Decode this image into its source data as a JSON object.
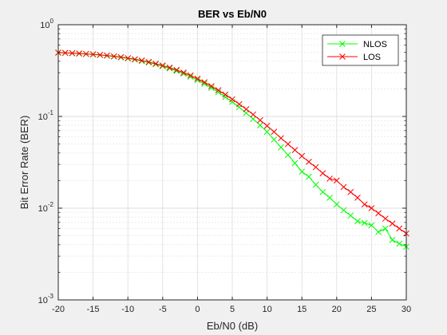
{
  "colors": {
    "NLOS": "#00ff00",
    "LOS": "#ff0000"
  },
  "chart_data": {
    "type": "line",
    "title": "BER vs Eb/N0",
    "xlabel": "Eb/N0 (dB)",
    "ylabel": "Bit Error Rate (BER)",
    "xlim": [
      -20,
      30
    ],
    "ylim": [
      0.001,
      1
    ],
    "yscale": "log",
    "grid": true,
    "legend_position": "top-right",
    "xticks": [
      -20,
      -15,
      -10,
      -5,
      0,
      5,
      10,
      15,
      20,
      25,
      30
    ],
    "xtick_labels": [
      "-20",
      "-15",
      "-10",
      "-5",
      "0",
      "5",
      "10",
      "15",
      "20",
      "25",
      "30"
    ],
    "yticks": [
      {
        "value": 0.001,
        "base": "10",
        "exp": "-3"
      },
      {
        "value": 0.01,
        "base": "10",
        "exp": "-2"
      },
      {
        "value": 0.1,
        "base": "10",
        "exp": "-1"
      },
      {
        "value": 1,
        "base": "10",
        "exp": "0"
      }
    ],
    "x": [
      -20,
      -19,
      -18,
      -17,
      -16,
      -15,
      -14,
      -13,
      -12,
      -11,
      -10,
      -9,
      -8,
      -7,
      -6,
      -5,
      -4,
      -3,
      -2,
      -1,
      0,
      1,
      2,
      3,
      4,
      5,
      6,
      7,
      8,
      9,
      10,
      11,
      12,
      13,
      14,
      15,
      16,
      17,
      18,
      19,
      20,
      21,
      22,
      23,
      24,
      25,
      26,
      27,
      28,
      29,
      30
    ],
    "series": [
      {
        "name": "NLOS",
        "marker": "x",
        "values": [
          0.495,
          0.492,
          0.488,
          0.484,
          0.479,
          0.473,
          0.467,
          0.459,
          0.45,
          0.44,
          0.429,
          0.416,
          0.402,
          0.387,
          0.371,
          0.353,
          0.334,
          0.314,
          0.293,
          0.271,
          0.249,
          0.227,
          0.205,
          0.184,
          0.163,
          0.144,
          0.126,
          0.109,
          0.094,
          0.08,
          0.068,
          0.056,
          0.046,
          0.038,
          0.031,
          0.025,
          0.022,
          0.018,
          0.015,
          0.013,
          0.011,
          0.0095,
          0.0083,
          0.0072,
          0.0069,
          0.0065,
          0.0055,
          0.006,
          0.0045,
          0.0041,
          0.0038
        ]
      },
      {
        "name": "LOS",
        "marker": "x",
        "values": [
          0.497,
          0.494,
          0.49,
          0.486,
          0.481,
          0.476,
          0.469,
          0.462,
          0.453,
          0.444,
          0.432,
          0.42,
          0.407,
          0.392,
          0.376,
          0.359,
          0.341,
          0.321,
          0.301,
          0.28,
          0.258,
          0.236,
          0.214,
          0.193,
          0.173,
          0.154,
          0.136,
          0.12,
          0.105,
          0.091,
          0.079,
          0.068,
          0.058,
          0.05,
          0.043,
          0.037,
          0.032,
          0.028,
          0.024,
          0.021,
          0.02,
          0.017,
          0.015,
          0.013,
          0.011,
          0.01,
          0.0088,
          0.0077,
          0.0068,
          0.006,
          0.0053
        ]
      }
    ]
  }
}
